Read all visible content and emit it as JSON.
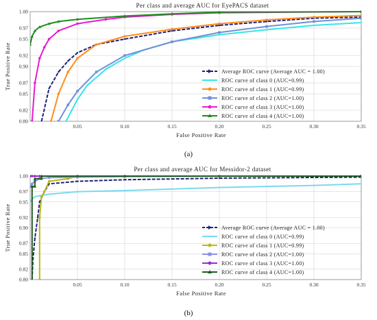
{
  "chart_data": [
    {
      "type": "line",
      "title": "Per class and average AUC for EyePACS dataset",
      "xlabel": "False Positive Rate",
      "ylabel": "True Positive Rate",
      "xlim": [
        0,
        0.35
      ],
      "ylim": [
        0.8,
        1.0
      ],
      "xticks": [
        0.05,
        0.1,
        0.15,
        0.2,
        0.25,
        0.3,
        0.35
      ],
      "xtick_labels": [
        "0.05",
        "0.10",
        "0.15",
        "0.20",
        "0.25",
        "0.30",
        "0.35"
      ],
      "yticks": [
        0.8,
        0.82,
        0.85,
        0.87,
        0.9,
        0.92,
        0.95,
        0.97,
        1.0
      ],
      "ytick_labels": [
        "0.80",
        "0.82",
        "0.85",
        "0.87",
        "0.90",
        "0.92",
        "0.95",
        "0.97",
        "1.00"
      ],
      "legend_position": "lower-right",
      "subfigure_label": "(a)",
      "series": [
        {
          "name": "Average ROC curve (Average AUC = 1.00)",
          "color": "#1f1f7a",
          "marker": "dash",
          "x": [
            0.012,
            0.02,
            0.03,
            0.04,
            0.05,
            0.07,
            0.1,
            0.15,
            0.2,
            0.25,
            0.3,
            0.35
          ],
          "y": [
            0.8,
            0.86,
            0.89,
            0.91,
            0.925,
            0.94,
            0.95,
            0.965,
            0.975,
            0.982,
            0.988,
            0.99
          ]
        },
        {
          "name": "ROC curve of class 0 (AUC=0.99)",
          "color": "#33e6e6",
          "marker": "line",
          "x": [
            0.038,
            0.05,
            0.06,
            0.08,
            0.1,
            0.12,
            0.15,
            0.2,
            0.25,
            0.3,
            0.35
          ],
          "y": [
            0.8,
            0.84,
            0.865,
            0.895,
            0.915,
            0.93,
            0.945,
            0.958,
            0.967,
            0.975,
            0.98
          ]
        },
        {
          "name": "ROC curve of class 1 (AUC=0.99)",
          "color": "#ff8c1a",
          "marker": "circle",
          "x": [
            0.022,
            0.03,
            0.04,
            0.05,
            0.07,
            0.1,
            0.15,
            0.2,
            0.25,
            0.3,
            0.35
          ],
          "y": [
            0.8,
            0.85,
            0.89,
            0.915,
            0.94,
            0.955,
            0.968,
            0.978,
            0.985,
            0.99,
            0.993
          ]
        },
        {
          "name": "ROC curve of class 2 (AUC=1.00)",
          "color": "#6f8fd8",
          "marker": "square",
          "x": [
            0.03,
            0.04,
            0.05,
            0.07,
            0.1,
            0.15,
            0.2,
            0.25,
            0.3,
            0.35
          ],
          "y": [
            0.8,
            0.83,
            0.855,
            0.89,
            0.92,
            0.945,
            0.962,
            0.973,
            0.982,
            0.988
          ]
        },
        {
          "name": "ROC curve of class 3 (AUC=1.00)",
          "color": "#e619d6",
          "marker": "circle",
          "x": [
            0.002,
            0.005,
            0.01,
            0.015,
            0.02,
            0.03,
            0.05,
            0.08,
            0.1,
            0.15,
            0.2,
            0.35
          ],
          "y": [
            0.8,
            0.87,
            0.915,
            0.935,
            0.95,
            0.965,
            0.978,
            0.986,
            0.99,
            0.995,
            0.998,
            1.0
          ]
        },
        {
          "name": "ROC curve of class 4 (AUC=1.00)",
          "color": "#1e8c1e",
          "marker": "triangle",
          "x": [
            0.0,
            0.002,
            0.005,
            0.01,
            0.02,
            0.03,
            0.05,
            0.1,
            0.15,
            0.2,
            0.35
          ],
          "y": [
            0.94,
            0.955,
            0.965,
            0.972,
            0.978,
            0.982,
            0.986,
            0.992,
            0.996,
            0.999,
            1.0
          ]
        }
      ]
    },
    {
      "type": "line",
      "title": "Per class and average AUC for Messidor-2 dataset",
      "xlabel": "False Positive Rate",
      "ylabel": "True Positive Rate",
      "xlim": [
        0,
        0.35
      ],
      "ylim": [
        0.8,
        1.0
      ],
      "xticks": [
        0.05,
        0.1,
        0.15,
        0.2,
        0.25,
        0.3,
        0.35
      ],
      "xtick_labels": [
        "0.05",
        "0.10",
        "0.15",
        "0.20",
        "0.25",
        "0.30",
        "0.35"
      ],
      "yticks": [
        0.8,
        0.82,
        0.85,
        0.87,
        0.9,
        0.92,
        0.95,
        0.97,
        1.0
      ],
      "ytick_labels": [
        "0.80",
        "0.82",
        "0.85",
        "0.87",
        "0.90",
        "0.92",
        "0.95",
        "0.97",
        "1.00"
      ],
      "legend_position": "lower-right",
      "subfigure_label": "(b)",
      "series": [
        {
          "name": "Average ROC curve (Average AUC = 1.00)",
          "color": "#1f1f7a",
          "marker": "dash",
          "x": [
            0.002,
            0.003,
            0.005,
            0.008,
            0.01,
            0.015,
            0.02,
            0.05,
            0.1,
            0.2,
            0.35
          ],
          "y": [
            0.8,
            0.84,
            0.88,
            0.92,
            0.95,
            0.97,
            0.985,
            0.99,
            0.993,
            0.996,
            0.998
          ]
        },
        {
          "name": "ROC curve of class 0 (AUC=0.99)",
          "color": "#7ad8f0",
          "marker": "line",
          "x": [
            0.0,
            0.002,
            0.005,
            0.01,
            0.02,
            0.05,
            0.1,
            0.2,
            0.3,
            0.35
          ],
          "y": [
            0.95,
            0.955,
            0.96,
            0.962,
            0.965,
            0.97,
            0.972,
            0.978,
            0.982,
            0.985
          ]
        },
        {
          "name": "ROC curve of class 1 (AUC=0.99)",
          "color": "#b8b81a",
          "marker": "circle",
          "x": [
            0.01,
            0.01,
            0.012,
            0.015,
            0.02,
            0.04,
            0.05,
            0.1,
            0.35
          ],
          "y": [
            0.8,
            0.92,
            0.96,
            0.97,
            0.99,
            0.995,
            1.0,
            1.0,
            1.0
          ]
        },
        {
          "name": "ROC curve of class 2 (AUC=1.00)",
          "color": "#8a8fe6",
          "marker": "square",
          "x": [
            0.0,
            0.002,
            0.005,
            0.01,
            0.02,
            0.05,
            0.1,
            0.2,
            0.35
          ],
          "y": [
            0.98,
            0.985,
            0.99,
            0.995,
            0.997,
            0.998,
            0.999,
            1.0,
            1.0
          ]
        },
        {
          "name": "ROC curve of class 3 (AUC=1.00)",
          "color": "#9a2ad0",
          "marker": "circle",
          "x": [
            0.0,
            0.002,
            0.005,
            0.01,
            0.05,
            0.1,
            0.35
          ],
          "y": [
            1.0,
            1.0,
            1.0,
            1.0,
            1.0,
            1.0,
            1.0
          ]
        },
        {
          "name": "ROC curve of class 4 (AUC=1.00)",
          "color": "#1e5c1e",
          "marker": "triangle",
          "x": [
            0.002,
            0.002,
            0.005,
            0.005,
            0.012,
            0.012,
            0.35
          ],
          "y": [
            0.8,
            0.98,
            0.98,
            0.995,
            0.995,
            1.0,
            1.0
          ]
        }
      ]
    }
  ]
}
